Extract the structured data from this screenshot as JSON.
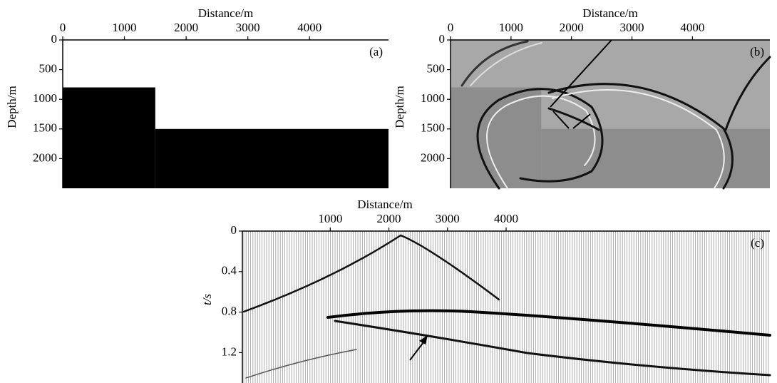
{
  "chart_data": [
    {
      "type": "step",
      "xlabel": "Distance/m",
      "ylabel": "Depth/m",
      "panel_label": "(a)",
      "x": [
        0,
        1500
      ],
      "values": [
        800,
        1500
      ],
      "color": "#000000",
      "background": "#ffffff",
      "xlim": [
        0,
        5280
      ],
      "ylim": [
        0,
        2500
      ],
      "xticks": [
        0,
        1000,
        2000,
        3000,
        4000
      ],
      "yticks": [
        0,
        500,
        1000,
        1500,
        2000
      ]
    },
    {
      "type": "step",
      "xlabel": "Distance/m",
      "ylabel": "Depth/m",
      "panel_label": "(b)",
      "x": [
        0,
        1500
      ],
      "values": [
        800,
        1500
      ],
      "color": "#8d8d8d",
      "background": "#a8a8a8",
      "xlim": [
        0,
        5280
      ],
      "ylim": [
        0,
        2500
      ],
      "xticks": [
        0,
        1000,
        2000,
        3000,
        4000
      ],
      "yticks": [
        0,
        500,
        1000,
        1500,
        2000
      ]
    },
    {
      "type": "seismogram",
      "xlabel": "Distance/m",
      "ylabel": "t/s",
      "panel_label": "(c)",
      "background": "#ffffff",
      "xlim": [
        -500,
        8500
      ],
      "ylim": [
        0,
        1.5
      ],
      "xticks": [
        1000,
        2000,
        3000,
        4000
      ],
      "yticks": [
        0,
        0.4,
        0.8,
        1.2
      ]
    }
  ]
}
